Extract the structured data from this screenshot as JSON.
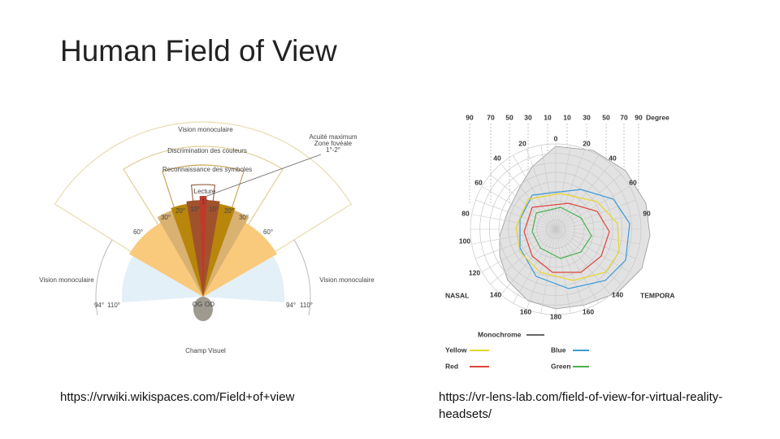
{
  "title": "Human Field of View",
  "left_figure": {
    "labels": [
      "Vision monoculaire",
      "Discrimination des couleurs",
      "Reconnaissance des symboles",
      "Lecture",
      "Acuité maximum",
      "Zone fovéale",
      "1°-2°",
      "1°",
      "10°",
      "10°",
      "20°",
      "20°",
      "30°",
      "30°",
      "60°",
      "60°",
      "Vision monoculaire",
      "Vision monoculaire",
      "94°",
      "110°",
      "94°",
      "110°",
      "OG",
      "OD",
      "Champ Visuel"
    ],
    "caption": "https://vrwiki.wikispaces.com/Field+of+view"
  },
  "right_figure": {
    "degree_row": [
      "90",
      "70",
      "50",
      "30",
      "10",
      "10",
      "30",
      "50",
      "70",
      "90",
      "Degree"
    ],
    "ring_labels": [
      "0",
      "20",
      "20",
      "40",
      "40",
      "60",
      "60",
      "80",
      "90",
      "100",
      "120",
      "140",
      "140",
      "160",
      "160",
      "180"
    ],
    "sides": [
      "NASAL",
      "TEMPORA"
    ],
    "legend": [
      "Monochrome",
      "Yellow",
      "Blue",
      "Red",
      "Green"
    ],
    "caption": "https://vr-lens-lab.com/field-of-view-for-virtual-reality-headsets/"
  }
}
